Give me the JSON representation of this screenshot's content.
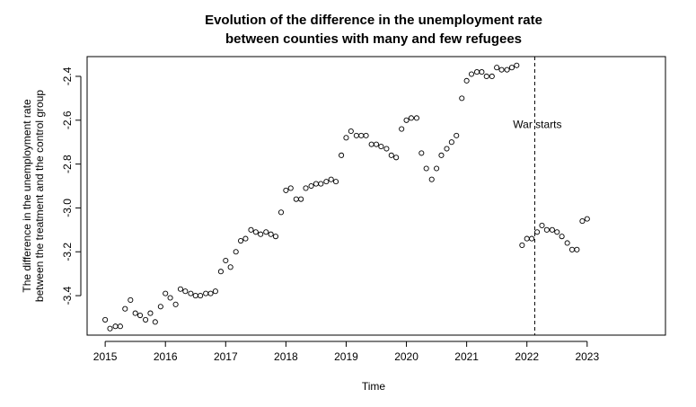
{
  "chart_data": {
    "type": "scatter",
    "title_line1": "Evolution of the difference in the unemployment rate",
    "title_line2": "between counties with many and few refugees",
    "xlabel": "Time",
    "ylabel_line1": "The difference in the unemployment rate",
    "ylabel_line2": "between the treatment and the control group",
    "xlim": [
      2014.7,
      2024.3
    ],
    "ylim": [
      -3.58,
      -2.31
    ],
    "x_ticks": [
      2015,
      2016,
      2017,
      2018,
      2019,
      2020,
      2021,
      2022,
      2023
    ],
    "x_tick_labels": [
      "2015",
      "2016",
      "2017",
      "2018",
      "2019",
      "2020",
      "2021",
      "2022",
      "2023"
    ],
    "y_ticks": [
      -3.4,
      -3.2,
      -3.0,
      -2.8,
      -2.6,
      -2.4
    ],
    "y_tick_labels": [
      "-3.4",
      "-3.2",
      "-3.0",
      "-2.8",
      "-2.6",
      "-2.4"
    ],
    "vline": {
      "x": 2022.13,
      "label": "War starts",
      "label_y": -2.62
    },
    "points": [
      [
        2015.0,
        -3.51
      ],
      [
        2015.08,
        -3.55
      ],
      [
        2015.17,
        -3.54
      ],
      [
        2015.25,
        -3.54
      ],
      [
        2015.33,
        -3.46
      ],
      [
        2015.42,
        -3.42
      ],
      [
        2015.5,
        -3.48
      ],
      [
        2015.58,
        -3.49
      ],
      [
        2015.67,
        -3.51
      ],
      [
        2015.75,
        -3.48
      ],
      [
        2015.83,
        -3.52
      ],
      [
        2015.92,
        -3.45
      ],
      [
        2016.0,
        -3.39
      ],
      [
        2016.08,
        -3.41
      ],
      [
        2016.17,
        -3.44
      ],
      [
        2016.25,
        -3.37
      ],
      [
        2016.33,
        -3.38
      ],
      [
        2016.42,
        -3.39
      ],
      [
        2016.5,
        -3.4
      ],
      [
        2016.58,
        -3.4
      ],
      [
        2016.67,
        -3.39
      ],
      [
        2016.75,
        -3.39
      ],
      [
        2016.83,
        -3.38
      ],
      [
        2016.92,
        -3.29
      ],
      [
        2017.0,
        -3.24
      ],
      [
        2017.08,
        -3.27
      ],
      [
        2017.17,
        -3.2
      ],
      [
        2017.25,
        -3.15
      ],
      [
        2017.33,
        -3.14
      ],
      [
        2017.42,
        -3.1
      ],
      [
        2017.5,
        -3.11
      ],
      [
        2017.58,
        -3.12
      ],
      [
        2017.67,
        -3.11
      ],
      [
        2017.75,
        -3.12
      ],
      [
        2017.83,
        -3.13
      ],
      [
        2017.92,
        -3.02
      ],
      [
        2018.0,
        -2.92
      ],
      [
        2018.08,
        -2.91
      ],
      [
        2018.17,
        -2.96
      ],
      [
        2018.25,
        -2.96
      ],
      [
        2018.33,
        -2.91
      ],
      [
        2018.42,
        -2.9
      ],
      [
        2018.5,
        -2.89
      ],
      [
        2018.58,
        -2.89
      ],
      [
        2018.67,
        -2.88
      ],
      [
        2018.75,
        -2.87
      ],
      [
        2018.83,
        -2.88
      ],
      [
        2018.92,
        -2.76
      ],
      [
        2019.0,
        -2.68
      ],
      [
        2019.08,
        -2.65
      ],
      [
        2019.17,
        -2.67
      ],
      [
        2019.25,
        -2.67
      ],
      [
        2019.33,
        -2.67
      ],
      [
        2019.42,
        -2.71
      ],
      [
        2019.5,
        -2.71
      ],
      [
        2019.58,
        -2.72
      ],
      [
        2019.67,
        -2.73
      ],
      [
        2019.75,
        -2.76
      ],
      [
        2019.83,
        -2.77
      ],
      [
        2019.92,
        -2.64
      ],
      [
        2020.0,
        -2.6
      ],
      [
        2020.08,
        -2.59
      ],
      [
        2020.17,
        -2.59
      ],
      [
        2020.25,
        -2.75
      ],
      [
        2020.33,
        -2.82
      ],
      [
        2020.42,
        -2.87
      ],
      [
        2020.5,
        -2.82
      ],
      [
        2020.58,
        -2.76
      ],
      [
        2020.67,
        -2.73
      ],
      [
        2020.75,
        -2.7
      ],
      [
        2020.83,
        -2.67
      ],
      [
        2020.92,
        -2.5
      ],
      [
        2021.0,
        -2.42
      ],
      [
        2021.08,
        -2.39
      ],
      [
        2021.17,
        -2.38
      ],
      [
        2021.25,
        -2.38
      ],
      [
        2021.33,
        -2.4
      ],
      [
        2021.42,
        -2.4
      ],
      [
        2021.5,
        -2.36
      ],
      [
        2021.58,
        -2.37
      ],
      [
        2021.67,
        -2.37
      ],
      [
        2021.75,
        -2.36
      ],
      [
        2021.83,
        -2.35
      ],
      [
        2021.92,
        -3.17
      ],
      [
        2022.0,
        -3.14
      ],
      [
        2022.08,
        -3.14
      ],
      [
        2022.17,
        -3.11
      ],
      [
        2022.25,
        -3.08
      ],
      [
        2022.33,
        -3.1
      ],
      [
        2022.42,
        -3.1
      ],
      [
        2022.5,
        -3.11
      ],
      [
        2022.58,
        -3.13
      ],
      [
        2022.67,
        -3.16
      ],
      [
        2022.75,
        -3.19
      ],
      [
        2022.83,
        -3.19
      ],
      [
        2022.92,
        -3.06
      ],
      [
        2023.0,
        -3.05
      ]
    ]
  }
}
